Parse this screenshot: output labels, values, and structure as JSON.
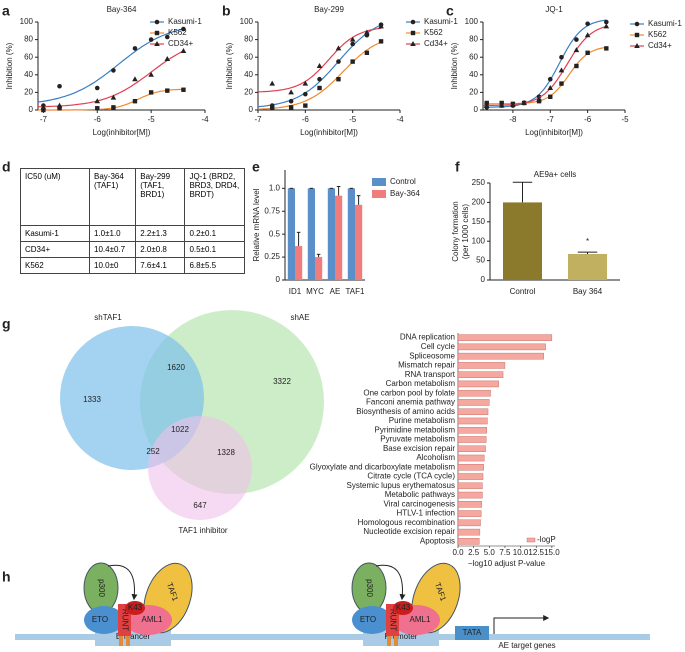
{
  "panel_labels": [
    "a",
    "b",
    "c",
    "d",
    "e",
    "f",
    "g",
    "h"
  ],
  "chart_data": [
    {
      "type": "line",
      "title": "Bay-364",
      "xlabel": "Log(inhibitor[M])",
      "ylabel": "Inhibition (%)",
      "xlim": [
        -7.1,
        -4
      ],
      "ylim": [
        0,
        100
      ],
      "xticks": [
        -7,
        -6,
        -5,
        -4
      ],
      "yticks": [
        0,
        20,
        40,
        60,
        80,
        100
      ],
      "legend": "upper left",
      "x": [
        -7,
        -6.7,
        -6,
        -5.7,
        -5.3,
        -5,
        -4.7,
        -4.4
      ],
      "series": [
        {
          "name": "Kasumi-1",
          "color": "#3a7fc4",
          "marker": "circle",
          "values": [
            5,
            27,
            25,
            45,
            70,
            80,
            83,
            92
          ]
        },
        {
          "name": "K562",
          "color": "#f08a30",
          "marker": "square",
          "values": [
            0,
            2,
            2,
            3,
            10,
            20,
            22,
            23
          ]
        },
        {
          "name": "CD34+",
          "color": "#e04050",
          "marker": "triangle",
          "values": [
            3,
            5,
            10,
            14,
            35,
            40,
            58,
            67
          ]
        }
      ]
    },
    {
      "type": "line",
      "title": "Bay-299",
      "xlabel": "Log(inhibitor[M])",
      "ylabel": "Inhibition (%)",
      "xlim": [
        -7,
        -4
      ],
      "ylim": [
        0,
        100
      ],
      "xticks": [
        -7,
        -6,
        -5,
        -4
      ],
      "yticks": [
        0,
        20,
        40,
        60,
        80,
        100
      ],
      "legend": "right",
      "x": [
        -6.7,
        -6.3,
        -6,
        -5.7,
        -5.3,
        -5,
        -4.7,
        -4.4
      ],
      "series": [
        {
          "name": "Kasumi-1",
          "color": "#3a7fc4",
          "marker": "circle",
          "values": [
            5,
            10,
            18,
            35,
            55,
            75,
            85,
            97
          ]
        },
        {
          "name": "K562",
          "color": "#f08a30",
          "marker": "square",
          "values": [
            2,
            3,
            5,
            25,
            35,
            55,
            65,
            78
          ]
        },
        {
          "name": "Cd34+",
          "color": "#e04050",
          "marker": "triangle",
          "values": [
            30,
            20,
            30,
            50,
            70,
            80,
            88,
            95
          ]
        }
      ]
    },
    {
      "type": "line",
      "title": "JQ-1",
      "xlabel": "Log(inhibitor[M])",
      "ylabel": "Inhibition (%)",
      "xlim": [
        -8.8,
        -5
      ],
      "ylim": [
        0,
        100
      ],
      "xticks": [
        -8,
        -7,
        -6,
        -5
      ],
      "yticks": [
        0,
        20,
        40,
        60,
        80,
        100
      ],
      "legend": "right",
      "x": [
        -8.7,
        -8.3,
        -8,
        -7.7,
        -7.3,
        -7,
        -6.7,
        -6.3,
        -6,
        -5.5
      ],
      "series": [
        {
          "name": "Kasumi-1",
          "color": "#3a7fc4",
          "marker": "circle",
          "values": [
            3,
            5,
            5,
            8,
            15,
            35,
            60,
            80,
            98,
            100
          ]
        },
        {
          "name": "K562",
          "color": "#f08a30",
          "marker": "square",
          "values": [
            8,
            8,
            7,
            8,
            10,
            15,
            30,
            50,
            65,
            70
          ]
        },
        {
          "name": "Cd34+",
          "color": "#e04050",
          "marker": "triangle",
          "values": [
            5,
            5,
            6,
            8,
            12,
            25,
            45,
            68,
            85,
            95
          ]
        }
      ]
    },
    {
      "type": "bar",
      "ylabel": "Relative mRNA level",
      "ylim": [
        0,
        1.2
      ],
      "yticks": [
        0,
        0.25,
        0.5,
        0.75,
        {
          "value": 1,
          "label": "1.0"
        }
      ],
      "legend": "upper right",
      "categories": [
        "ID1",
        "MYC",
        "AE",
        "TAF1"
      ],
      "series": [
        {
          "name": "Control",
          "color": "#5b8fc9",
          "values": [
            1,
            1,
            1,
            1
          ],
          "errors": [
            0,
            0,
            0,
            0
          ]
        },
        {
          "name": "Bay-364",
          "color": "#f07c7c",
          "values": [
            0.37,
            0.25,
            0.92,
            0.82
          ],
          "errors": [
            0.15,
            0.03,
            0.1,
            0.1
          ]
        }
      ]
    },
    {
      "type": "bar",
      "title": "AE9a+ cells",
      "ylabel": [
        "Colony formation",
        "(per 1000 cells)"
      ],
      "ylim": [
        0,
        250
      ],
      "yticks": [
        0,
        50,
        100,
        150,
        200,
        250
      ],
      "categories": [
        "Control",
        "Bay 364"
      ],
      "values": [
        200,
        67
      ],
      "errors": [
        52,
        5
      ],
      "colors": [
        "#8b7a2b",
        "#c0b060"
      ],
      "annotation": "*"
    },
    {
      "type": "barh",
      "xlabel": "−log10 adjust P-value",
      "xlim": [
        0,
        15.5
      ],
      "xticks": [
        {
          "value": 0,
          "label": "0.0"
        },
        2.5,
        {
          "value": 5,
          "label": "5.0"
        },
        7.5,
        {
          "value": 10,
          "label": "10.0"
        },
        12.5,
        {
          "value": 15,
          "label": "15.0"
        }
      ],
      "legend": "lower right",
      "categories": [
        "DNA replication",
        "Cell cycle",
        "Spliceosome",
        "Mismatch repair",
        "RNA transport",
        "Carbon metabolism",
        "One carbon pool by folate",
        "Fanconi anemia pathway",
        "Biosynthesis of amino acids",
        "Purine metabolism",
        "Pyrimidine metabolism",
        "Pyruvate metabolism",
        "Base excision repair",
        "Alcoholism",
        "Glyoxylate and dicarboxylate metabolism",
        "Citrate cycle (TCA cycle)",
        "Systemic lupus erythematosus",
        "Metabolic pathways",
        "Viral carcinogenesis",
        "HTLV-1 infection",
        "Homologous recombination",
        "Nucleotide excision repair",
        "Apoptosis"
      ],
      "series": [
        {
          "name": "-logP",
          "color": "#f4a8a0",
          "values": [
            15,
            14,
            13.7,
            7.5,
            7.2,
            6.5,
            5.2,
            5,
            4.8,
            4.7,
            4.6,
            4.5,
            4.4,
            4.2,
            4.1,
            4,
            3.9,
            3.9,
            3.8,
            3.7,
            3.6,
            3.5,
            3.4
          ]
        }
      ]
    }
  ],
  "table": {
    "header": [
      "IC50 (uM)",
      "Bay-364 (TAF1)",
      "Bay-299 (TAF1, BRD1)",
      "JQ-1 (BRD2, BRD3, DRD4, BRDT)"
    ],
    "rows": [
      [
        "Kasumi-1",
        "1.0±1.0",
        "2.2±1.3",
        "0.2±0.1"
      ],
      [
        "CD34+",
        "10.4±0.7",
        "2.0±0.8",
        "0.5±0.1"
      ],
      [
        "K562",
        "10.0±0",
        "7.6±4.1",
        "6.8±5.5"
      ]
    ]
  },
  "venn": {
    "sets": [
      "shTAF1",
      "shAE",
      "TAF1 inhibitor"
    ],
    "regions": [
      1333,
      1620,
      3322,
      1022,
      252,
      1328,
      647
    ]
  },
  "diagram": {
    "complexes": [
      {
        "proteins": [
          "p300",
          "K43",
          "TAF1",
          "ETO",
          "RUNT",
          "AML1"
        ],
        "element": "Enhancer"
      },
      {
        "proteins": [
          "p300",
          "K43",
          "TAF1",
          "ETO",
          "RUNT",
          "AML1"
        ],
        "element": "Promoter"
      }
    ],
    "tata": "TATA",
    "target": "AE target genes"
  }
}
